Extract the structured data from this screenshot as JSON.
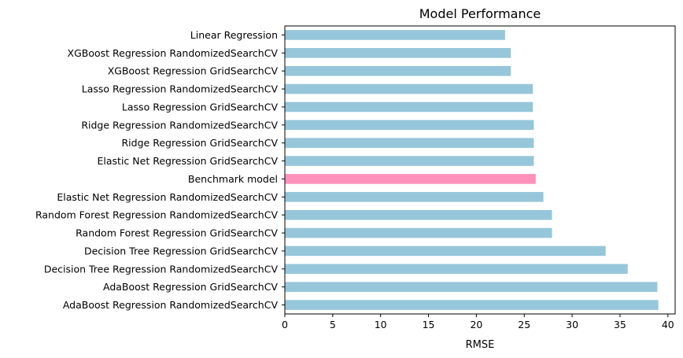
{
  "chart_data": {
    "type": "bar",
    "orientation": "horizontal",
    "title": "Model Performance",
    "xlabel": "RMSE",
    "ylabel": "",
    "xlim": [
      0,
      41
    ],
    "xticks": [
      0,
      5,
      10,
      15,
      20,
      25,
      30,
      35,
      40
    ],
    "categories": [
      "Linear Regression",
      "XGBoost Regression RandomizedSearchCV",
      "XGBoost Regression GridSearchCV",
      "Lasso Regression RandomizedSearchCV",
      "Lasso Regression GridSearchCV",
      "Ridge Regression RandomizedSearchCV",
      "Ridge Regression GridSearchCV",
      "Elastic Net Regression GridSearchCV",
      "Benchmark model",
      "Elastic Net Regression RandomizedSearchCV",
      "Random Forest Regression RandomizedSearchCV",
      "Random Forest Regression GridSearchCV",
      "Decision Tree Regression GridSearchCV",
      "Decision Tree Regression RandomizedSearchCV",
      "AdaBoost Regression GridSearchCV",
      "AdaBoost Regression RandomizedSearchCV"
    ],
    "values": [
      23.0,
      23.6,
      23.6,
      25.9,
      25.9,
      26.0,
      26.0,
      26.0,
      26.2,
      27.0,
      27.9,
      27.9,
      33.5,
      35.8,
      38.9,
      39.0
    ],
    "colors": {
      "default": "#96c6da",
      "highlight": "#fd91bb",
      "highlight_category": "Benchmark model"
    },
    "grid": false,
    "legend": "none"
  }
}
